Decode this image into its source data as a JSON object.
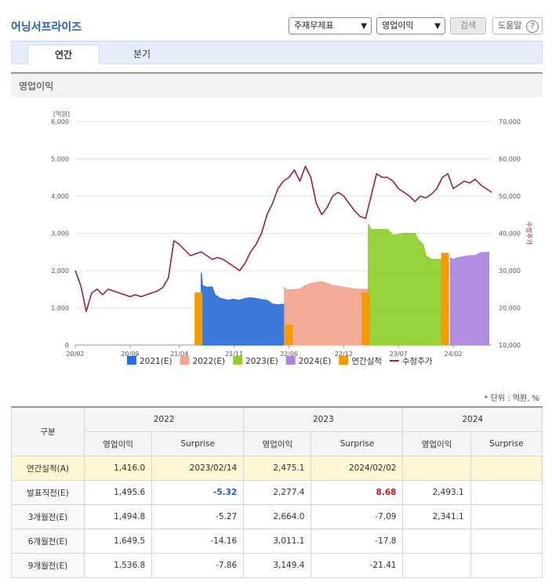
{
  "header": {
    "title": "어닝서프라이즈",
    "select1": "주재무제표",
    "select2": "영업이익",
    "search_label": "검색",
    "help_label": "도움말"
  },
  "tabs": [
    {
      "label": "연간",
      "active": true
    },
    {
      "label": "분기",
      "active": false
    }
  ],
  "section_title": "영업이익",
  "unit_note": "* 단위 : 억원, %",
  "chart_data": {
    "type": "line",
    "ylabel": "[억원]",
    "y2label": "수정주가",
    "ylim": [
      0,
      6000
    ],
    "y2lim": [
      10000,
      70000
    ],
    "y_ticks": [
      "0",
      "1,000",
      "2,000",
      "3,000",
      "4,000",
      "5,000",
      "6,000"
    ],
    "y2_ticks": [
      "10,000",
      "20,000",
      "30,000",
      "40,000",
      "50,000",
      "60,000",
      "70,000"
    ],
    "x_ticks": [
      "20/02",
      "20/09",
      "21/04",
      "21/11",
      "22/06",
      "22/12",
      "23/07",
      "24/02"
    ],
    "colors": {
      "e2021": "#2a6ed8",
      "e2022": "#f2a48e",
      "e2023": "#8fce2c",
      "e2024": "#ab84df",
      "actual": "#f59b00",
      "price": "#9b1e3b"
    },
    "legend": [
      {
        "name": "2021(E)",
        "color": "#2a6ed8"
      },
      {
        "name": "2022(E)",
        "color": "#f2a48e"
      },
      {
        "name": "2023(E)",
        "color": "#8fce2c"
      },
      {
        "name": "2024(E)",
        "color": "#ab84df"
      },
      {
        "name": "연간실적",
        "color": "#f59b00"
      },
      {
        "name": "수정주가",
        "color": "#9b1e3b",
        "line": true
      }
    ],
    "series": [
      {
        "name": "2021(E)",
        "x": [
          23.0,
          23.2,
          24.0,
          25.0,
          25.5,
          26.5,
          28.0,
          28.8,
          30.0,
          31.0,
          32.0,
          33.0,
          34.0,
          35.0,
          36.0,
          37.0,
          38.2
        ],
        "values": [
          1950,
          1600,
          1550,
          1560,
          1350,
          1250,
          1200,
          1230,
          1200,
          1250,
          1270,
          1250,
          1220,
          1200,
          1100,
          1080,
          1100
        ]
      },
      {
        "name": "2022(E)",
        "x": [
          38.2,
          38.6,
          40.0,
          41.0,
          42.0,
          43.0,
          44.0,
          45.0,
          46.0,
          47.0,
          48.0,
          49.0,
          50.0,
          51.5,
          53.5
        ],
        "values": [
          1550,
          1480,
          1490,
          1500,
          1600,
          1650,
          1680,
          1700,
          1650,
          1600,
          1580,
          1550,
          1530,
          1500,
          1495
        ]
      },
      {
        "name": "2023(E)",
        "x": [
          53.5,
          54.0,
          55.0,
          57.0,
          58.0,
          60.0,
          62.0,
          62.5,
          63.5,
          64.0,
          65.0,
          66.0,
          67.5
        ],
        "values": [
          3250,
          3100,
          3100,
          3100,
          2950,
          3000,
          3000,
          2850,
          2700,
          2400,
          2300,
          2300,
          2280
        ]
      },
      {
        "name": "2024(E)",
        "x": [
          68.5,
          69.0,
          70.0,
          72.0,
          73.0,
          74.0,
          75.5
        ],
        "values": [
          2340,
          2300,
          2350,
          2400,
          2400,
          2480,
          2490
        ]
      }
    ],
    "actual": [
      {
        "x": 22.5,
        "value": 1416
      },
      {
        "x": 39.0,
        "value": 550
      },
      {
        "x": 53.0,
        "value": 1416
      },
      {
        "x": 67.5,
        "value": 2475
      }
    ],
    "price": {
      "x": [
        0,
        1,
        2,
        3,
        4,
        5,
        6,
        7,
        8,
        9,
        10,
        11,
        12,
        13,
        14,
        15,
        16,
        17,
        18,
        19,
        20,
        21,
        22,
        23,
        24,
        25,
        26,
        27,
        28,
        29,
        30,
        31,
        32,
        33,
        34,
        35,
        36,
        37,
        38,
        39,
        40,
        41,
        42,
        43,
        44,
        45,
        46,
        47,
        48,
        49,
        50,
        51,
        52,
        53,
        54,
        55,
        56,
        57,
        58,
        59,
        60,
        61,
        62,
        63,
        64,
        65,
        66,
        67,
        68,
        69,
        70,
        71,
        72,
        73,
        74,
        75,
        76
      ],
      "values": [
        30000,
        26000,
        19000,
        24000,
        25000,
        23500,
        25000,
        24500,
        24000,
        23500,
        23000,
        23500,
        23000,
        23500,
        24000,
        24500,
        25500,
        28000,
        38000,
        37000,
        35500,
        34000,
        34500,
        35000,
        34000,
        33000,
        33500,
        33000,
        32000,
        31000,
        30000,
        32000,
        35000,
        37000,
        40000,
        45000,
        48000,
        52000,
        54000,
        55000,
        57000,
        54000,
        58000,
        55000,
        48000,
        45000,
        47000,
        50000,
        51000,
        50000,
        48000,
        46000,
        44500,
        44000,
        50000,
        56000,
        55000,
        55000,
        54000,
        52000,
        51000,
        50000,
        48500,
        50000,
        49500,
        50500,
        52000,
        55000,
        56000,
        52000,
        53000,
        54000,
        53500,
        54500,
        53000,
        52000,
        51000
      ]
    },
    "x_tick_positions": [
      0,
      10,
      19,
      29,
      39,
      49,
      59,
      69
    ]
  },
  "table": {
    "col_group_label": "구분",
    "years": [
      "2022",
      "2023",
      "2024"
    ],
    "sub_headers": [
      "영업이익",
      "Surprise"
    ],
    "rows": [
      {
        "label": "연간실적(A)",
        "cells": [
          "1,416.0",
          "2023/02/14",
          "2,475.1",
          "2024/02/02",
          "",
          ""
        ]
      },
      {
        "label": "발표직전(E)",
        "cells": [
          "1,495.6",
          "-5.32",
          "2,277.4",
          "8.68",
          "2,493.1",
          ""
        ]
      },
      {
        "label": "3개월전(E)",
        "cells": [
          "1,494.8",
          "-5.27",
          "2,664.0",
          "-7.09",
          "2,341.1",
          ""
        ]
      },
      {
        "label": "6개월전(E)",
        "cells": [
          "1,649.5",
          "-14.16",
          "3,011.1",
          "-17.8",
          "",
          ""
        ]
      },
      {
        "label": "9개월전(E)",
        "cells": [
          "1,536.8",
          "-7.86",
          "3,149.4",
          "-21.41",
          "",
          ""
        ]
      }
    ]
  }
}
